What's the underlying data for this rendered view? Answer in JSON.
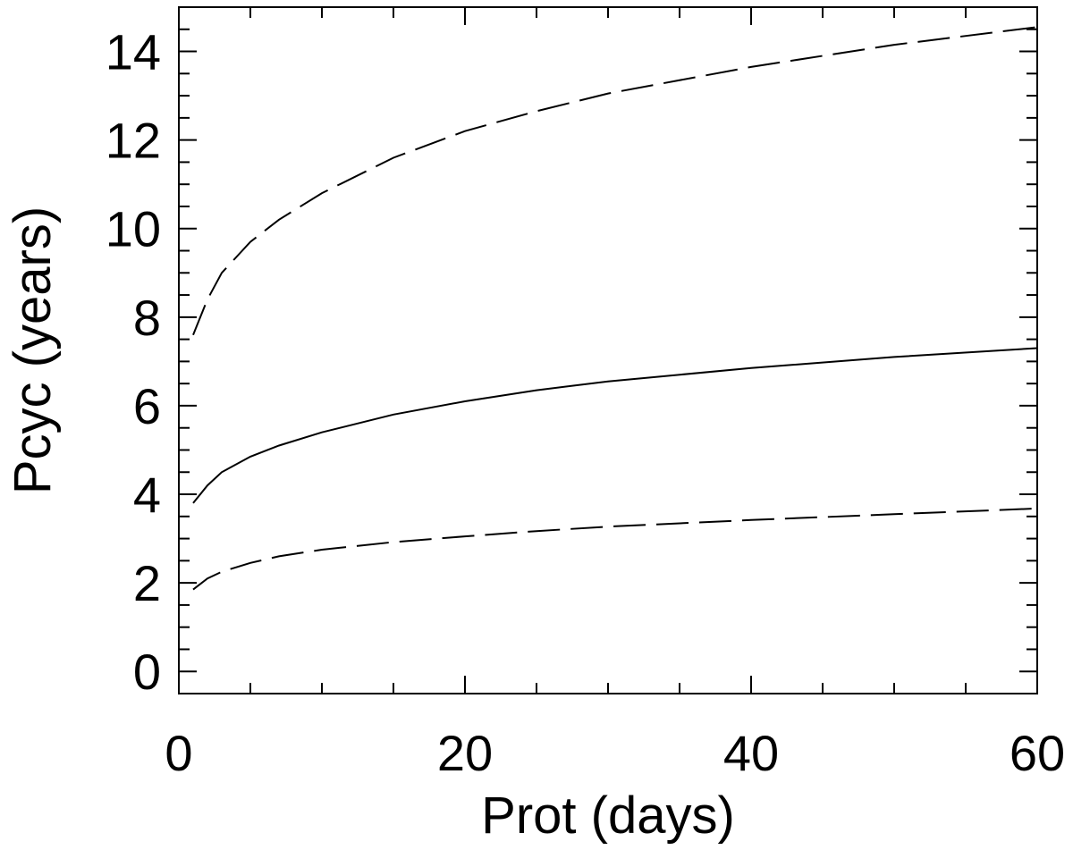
{
  "chart_data": {
    "type": "line",
    "xlabel": "Prot (days)",
    "ylabel": "Pcyc (years)",
    "xlim": [
      0,
      60
    ],
    "ylim": [
      -0.5,
      15
    ],
    "xticks": [
      "0",
      "20",
      "40",
      "60"
    ],
    "yticks": [
      "0",
      "2",
      "4",
      "6",
      "8",
      "10",
      "12",
      "14"
    ],
    "grid": false,
    "legend": "none",
    "series": [
      {
        "style": "solid",
        "x": [
          1,
          2,
          3,
          5,
          7,
          10,
          15,
          20,
          25,
          30,
          40,
          50,
          60
        ],
        "y": [
          3.8,
          4.2,
          4.5,
          4.85,
          5.1,
          5.4,
          5.8,
          6.1,
          6.35,
          6.55,
          6.85,
          7.1,
          7.3
        ]
      },
      {
        "style": "dashed",
        "x": [
          1,
          2,
          3,
          5,
          7,
          10,
          15,
          20,
          25,
          30,
          40,
          50,
          60
        ],
        "y": [
          7.6,
          8.4,
          9.0,
          9.7,
          10.2,
          10.8,
          11.6,
          12.2,
          12.65,
          13.05,
          13.65,
          14.15,
          14.55
        ]
      },
      {
        "style": "dashed",
        "x": [
          1,
          2,
          3,
          5,
          7,
          10,
          15,
          20,
          25,
          30,
          40,
          50,
          60
        ],
        "y": [
          1.85,
          2.1,
          2.25,
          2.45,
          2.6,
          2.75,
          2.92,
          3.05,
          3.17,
          3.27,
          3.42,
          3.55,
          3.68
        ]
      }
    ]
  }
}
